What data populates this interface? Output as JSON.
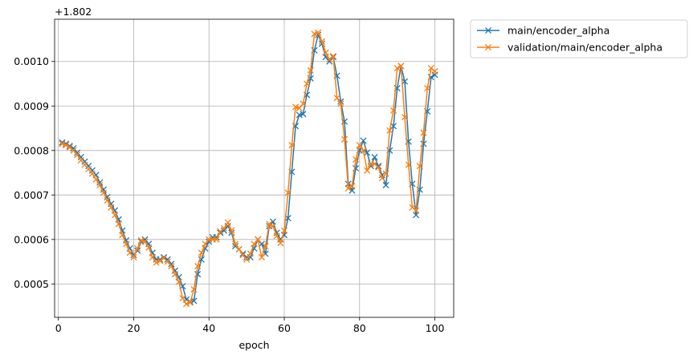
{
  "chart_data": {
    "type": "line",
    "title": "",
    "xlabel": "epoch",
    "ylabel": "",
    "y_offset_label": "+1.802",
    "y_offset": 1.802,
    "xlim": [
      -1,
      105
    ],
    "ylim": [
      0.000425,
      0.001095
    ],
    "grid": true,
    "legend": "outside-top-right",
    "x_ticks": [
      0,
      20,
      40,
      60,
      80,
      100
    ],
    "x_tick_labels": [
      "0",
      "20",
      "40",
      "60",
      "80",
      "100"
    ],
    "y_ticks": [
      0.0005,
      0.0006,
      0.0007,
      0.0008,
      0.0009,
      0.001
    ],
    "y_tick_labels": [
      "0.0005",
      "0.0006",
      "0.0007",
      "0.0008",
      "0.0009",
      "0.0010"
    ],
    "x": [
      1,
      2,
      3,
      4,
      5,
      6,
      7,
      8,
      9,
      10,
      11,
      12,
      13,
      14,
      15,
      16,
      17,
      18,
      19,
      20,
      21,
      22,
      23,
      24,
      25,
      26,
      27,
      28,
      29,
      30,
      31,
      32,
      33,
      34,
      35,
      36,
      37,
      38,
      39,
      40,
      41,
      42,
      43,
      44,
      45,
      46,
      47,
      48,
      49,
      50,
      51,
      52,
      53,
      54,
      55,
      56,
      57,
      58,
      59,
      60,
      61,
      62,
      63,
      64,
      65,
      66,
      67,
      68,
      69,
      70,
      71,
      72,
      73,
      74,
      75,
      76,
      77,
      78,
      79,
      80,
      81,
      82,
      83,
      84,
      85,
      86,
      87,
      88,
      89,
      90,
      91,
      92,
      93,
      94,
      95,
      96,
      97,
      98,
      99,
      100
    ],
    "series": [
      {
        "name": "main/encoder_alpha",
        "color": "#1f77b4",
        "marker": "x",
        "values": [
          0.000818,
          0.000815,
          0.00081,
          0.000805,
          0.000795,
          0.000785,
          0.000775,
          0.000765,
          0.000755,
          0.000745,
          0.000728,
          0.000712,
          0.000695,
          0.00068,
          0.000665,
          0.000645,
          0.00062,
          0.000598,
          0.00058,
          0.000565,
          0.000575,
          0.000595,
          0.0006,
          0.00059,
          0.00057,
          0.000555,
          0.000555,
          0.00056,
          0.000555,
          0.000545,
          0.00053,
          0.000515,
          0.000495,
          0.000465,
          0.00046,
          0.000462,
          0.000522,
          0.000555,
          0.00058,
          0.000595,
          0.000605,
          0.000605,
          0.000615,
          0.00062,
          0.00063,
          0.000615,
          0.000585,
          0.000578,
          0.000568,
          0.00056,
          0.00056,
          0.00058,
          0.0006,
          0.00059,
          0.000568,
          0.00063,
          0.00064,
          0.000615,
          0.0006,
          0.00061,
          0.000648,
          0.000752,
          0.000855,
          0.00088,
          0.000882,
          0.000925,
          0.000962,
          0.001025,
          0.00106,
          0.00104,
          0.00101,
          0.001,
          0.00101,
          0.000968,
          0.00091,
          0.000865,
          0.000725,
          0.00071,
          0.00076,
          0.0008,
          0.000822,
          0.000795,
          0.000765,
          0.000785,
          0.000765,
          0.000745,
          0.000722,
          0.0008,
          0.000855,
          0.00094,
          0.00099,
          0.000955,
          0.00082,
          0.000725,
          0.000655,
          0.000712,
          0.000815,
          0.000888,
          0.000965,
          0.00097
        ]
      },
      {
        "name": "validation/main/encoder_alpha",
        "color": "#ff7f0e",
        "marker": "x",
        "values": [
          0.000815,
          0.000812,
          0.000807,
          0.0008,
          0.00079,
          0.000778,
          0.000768,
          0.000758,
          0.000748,
          0.000735,
          0.000722,
          0.000705,
          0.000688,
          0.000672,
          0.000655,
          0.000635,
          0.00061,
          0.00059,
          0.00057,
          0.00056,
          0.00058,
          0.000598,
          0.000595,
          0.000582,
          0.00056,
          0.000548,
          0.000552,
          0.000558,
          0.00055,
          0.00054,
          0.000522,
          0.000505,
          0.000468,
          0.000455,
          0.000458,
          0.000488,
          0.00054,
          0.00057,
          0.00059,
          0.0006,
          0.0006,
          0.0006,
          0.000618,
          0.000625,
          0.000638,
          0.00062,
          0.00059,
          0.000578,
          0.000565,
          0.000555,
          0.000568,
          0.00059,
          0.0006,
          0.00056,
          0.000585,
          0.000635,
          0.00063,
          0.000608,
          0.000592,
          0.00062,
          0.000705,
          0.000812,
          0.000898,
          0.000895,
          0.000905,
          0.00095,
          0.00098,
          0.001062,
          0.001065,
          0.001045,
          0.00102,
          0.001005,
          0.001012,
          0.000918,
          0.000905,
          0.000825,
          0.000715,
          0.00072,
          0.00078,
          0.000812,
          0.0008,
          0.000755,
          0.00077,
          0.00077,
          0.000762,
          0.000738,
          0.000748,
          0.000845,
          0.00089,
          0.000985,
          0.00099,
          0.000875,
          0.000768,
          0.000672,
          0.000665,
          0.000765,
          0.00084,
          0.00094,
          0.000985,
          0.000978
        ]
      }
    ]
  }
}
